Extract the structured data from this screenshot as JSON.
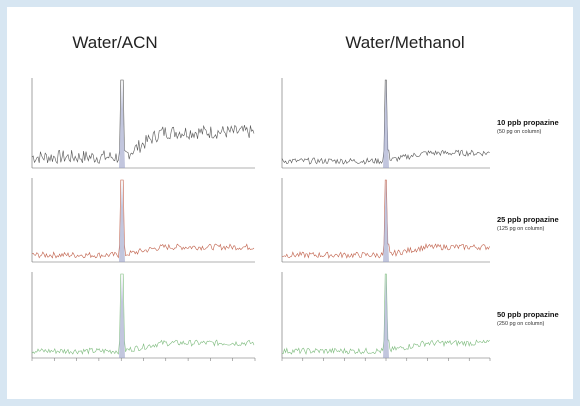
{
  "headers": [
    "Water/ACN",
    "Water/Methanol"
  ],
  "rows": [
    {
      "label": "10 ppb propazine",
      "note": "(50 pg on column)"
    },
    {
      "label": "25 ppb propazine",
      "note": "(125 pg on column)"
    },
    {
      "label": "50 ppb propazine",
      "note": "(250 pg on column)"
    }
  ]
}
